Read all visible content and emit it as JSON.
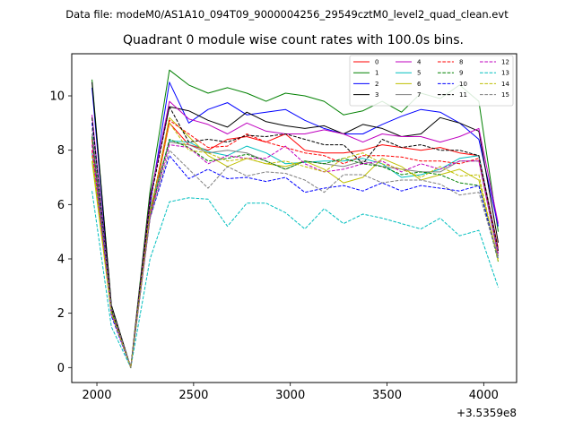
{
  "figure": {
    "suptitle": "Data file: modeM0/AS1A10_094T09_9000004256_29549cztM0_level2_quad_clean.evt",
    "title": "Quadrant 0 module wise count rates with 100.0s bins.",
    "offset_label": "+3.5359e8"
  },
  "chart_data": {
    "type": "line",
    "title": "Quadrant 0 module wise count rates with 100.0s bins.",
    "xlabel": "",
    "ylabel": "",
    "x_offset": 353590000,
    "xlim": [
      1870,
      4170
    ],
    "ylim": [
      -0.55,
      11.55
    ],
    "xticks": [
      2000,
      2500,
      3000,
      3500,
      4000
    ],
    "xtick_labels": [
      "2000",
      "2500",
      "3000",
      "3500",
      "4000"
    ],
    "yticks": [
      0,
      2,
      4,
      6,
      8,
      10
    ],
    "ytick_labels": [
      "0",
      "2",
      "4",
      "6",
      "8",
      "10"
    ],
    "legend_placement": "top-right",
    "legend_columns": 4,
    "x": [
      1975,
      2075,
      2175,
      2275,
      2375,
      2475,
      2575,
      2675,
      2775,
      2875,
      2975,
      3075,
      3175,
      3275,
      3375,
      3475,
      3575,
      3675,
      3775,
      3875,
      3975,
      4075
    ],
    "series": [
      {
        "name": "0",
        "color": "#ff0000",
        "dash": "solid",
        "values": [
          8.4,
          2.1,
          0.0,
          5.5,
          9.0,
          8.2,
          8.0,
          8.4,
          8.5,
          8.3,
          8.6,
          8.0,
          7.9,
          7.9,
          8.0,
          8.2,
          8.1,
          8.0,
          8.1,
          7.9,
          7.8,
          4.4
        ]
      },
      {
        "name": "1",
        "color": "#008000",
        "dash": "solid",
        "values": [
          10.6,
          2.3,
          0.0,
          6.5,
          10.95,
          10.4,
          10.1,
          10.3,
          10.1,
          9.8,
          10.1,
          10.0,
          9.8,
          9.3,
          9.45,
          9.8,
          9.4,
          10.1,
          9.9,
          10.4,
          9.8,
          5.0
        ]
      },
      {
        "name": "2",
        "color": "#0000ff",
        "dash": "solid",
        "values": [
          10.3,
          2.2,
          0.0,
          6.0,
          10.5,
          9.0,
          9.5,
          9.75,
          9.3,
          9.4,
          9.5,
          9.1,
          8.8,
          8.6,
          8.6,
          8.95,
          9.25,
          9.5,
          9.4,
          9.0,
          8.4,
          5.2
        ]
      },
      {
        "name": "3",
        "color": "#000000",
        "dash": "solid",
        "values": [
          10.5,
          2.3,
          0.0,
          6.3,
          9.6,
          9.45,
          9.1,
          8.85,
          9.4,
          9.05,
          8.9,
          8.8,
          8.9,
          8.6,
          8.95,
          8.8,
          8.5,
          8.6,
          9.2,
          9.0,
          8.7,
          4.6
        ]
      },
      {
        "name": "4",
        "color": "#bf00bf",
        "dash": "solid",
        "values": [
          9.3,
          2.2,
          0.0,
          6.2,
          9.8,
          9.15,
          8.95,
          8.6,
          9.0,
          8.7,
          8.6,
          8.6,
          8.75,
          8.6,
          8.3,
          8.6,
          8.5,
          8.5,
          8.3,
          8.5,
          8.8,
          5.3
        ]
      },
      {
        "name": "5",
        "color": "#00bfbf",
        "dash": "solid",
        "values": [
          7.9,
          2.0,
          0.0,
          5.8,
          8.35,
          8.3,
          7.95,
          7.8,
          8.15,
          7.9,
          7.5,
          7.55,
          7.6,
          7.6,
          7.7,
          7.5,
          7.0,
          7.1,
          7.3,
          7.7,
          7.8,
          4.3
        ]
      },
      {
        "name": "6",
        "color": "#bfbf00",
        "dash": "solid",
        "values": [
          7.6,
          2.0,
          0.0,
          5.6,
          9.2,
          8.5,
          7.8,
          7.4,
          7.7,
          7.5,
          7.4,
          7.6,
          7.3,
          6.8,
          7.0,
          7.7,
          7.4,
          6.9,
          7.1,
          7.3,
          6.9,
          4.0
        ]
      },
      {
        "name": "7",
        "color": "#7f7f7f",
        "dash": "solid",
        "values": [
          8.6,
          2.1,
          0.0,
          5.9,
          8.3,
          8.2,
          7.9,
          8.0,
          7.9,
          7.6,
          7.3,
          7.6,
          7.5,
          7.4,
          7.6,
          7.4,
          7.3,
          7.2,
          7.2,
          7.6,
          7.6,
          4.1
        ]
      },
      {
        "name": "8",
        "color": "#ff0000",
        "dash": "dashed",
        "values": [
          8.0,
          2.1,
          0.0,
          5.7,
          9.1,
          8.6,
          8.1,
          8.15,
          8.6,
          8.3,
          8.1,
          7.9,
          7.8,
          7.5,
          7.8,
          7.8,
          7.75,
          7.6,
          7.6,
          7.5,
          7.7,
          4.2
        ]
      },
      {
        "name": "9",
        "color": "#008000",
        "dash": "dashed",
        "values": [
          8.5,
          2.1,
          0.0,
          5.6,
          8.4,
          8.1,
          7.6,
          7.7,
          7.85,
          7.6,
          7.3,
          7.6,
          7.5,
          7.7,
          7.5,
          7.4,
          7.1,
          7.2,
          7.1,
          6.8,
          6.7,
          3.9
        ]
      },
      {
        "name": "10",
        "color": "#0000ff",
        "dash": "dashed",
        "values": [
          9.0,
          1.9,
          0.0,
          5.5,
          7.8,
          6.95,
          7.3,
          6.95,
          7.0,
          6.85,
          7.0,
          6.45,
          6.6,
          6.7,
          6.5,
          6.8,
          6.5,
          6.7,
          6.6,
          6.5,
          6.7,
          4.0
        ]
      },
      {
        "name": "11",
        "color": "#000000",
        "dash": "dashed",
        "values": [
          9.2,
          2.2,
          0.0,
          6.1,
          9.6,
          8.3,
          8.4,
          8.3,
          8.55,
          8.5,
          8.6,
          8.4,
          8.2,
          8.2,
          7.5,
          8.4,
          8.1,
          8.2,
          8.0,
          8.0,
          7.8,
          4.3
        ]
      },
      {
        "name": "12",
        "color": "#bf00bf",
        "dash": "dashed",
        "values": [
          8.2,
          2.0,
          0.0,
          5.6,
          8.2,
          8.1,
          7.5,
          7.8,
          7.7,
          7.7,
          8.15,
          7.5,
          7.2,
          7.3,
          7.5,
          7.6,
          7.2,
          7.5,
          7.3,
          7.6,
          7.6,
          4.2
        ]
      },
      {
        "name": "13",
        "color": "#00bfbf",
        "dash": "dashed",
        "values": [
          6.5,
          1.5,
          0.0,
          4.0,
          6.1,
          6.25,
          6.2,
          5.2,
          6.05,
          6.05,
          5.7,
          5.1,
          5.85,
          5.3,
          5.65,
          5.5,
          5.3,
          5.1,
          5.5,
          4.85,
          5.05,
          2.95
        ]
      },
      {
        "name": "14",
        "color": "#bfbf00",
        "dash": "dashed",
        "values": [
          7.8,
          2.0,
          0.0,
          5.7,
          9.0,
          8.0,
          7.9,
          7.6,
          7.7,
          7.5,
          7.6,
          7.4,
          7.2,
          7.7,
          7.9,
          7.5,
          7.3,
          7.0,
          7.4,
          7.05,
          7.1,
          3.9
        ]
      },
      {
        "name": "15",
        "color": "#7f7f7f",
        "dash": "dashed",
        "values": [
          8.8,
          2.2,
          0.0,
          5.5,
          8.0,
          7.3,
          6.6,
          7.4,
          7.05,
          7.2,
          7.15,
          6.9,
          6.45,
          7.1,
          7.1,
          6.8,
          6.9,
          6.9,
          6.75,
          6.35,
          6.45,
          4.0
        ]
      }
    ]
  }
}
